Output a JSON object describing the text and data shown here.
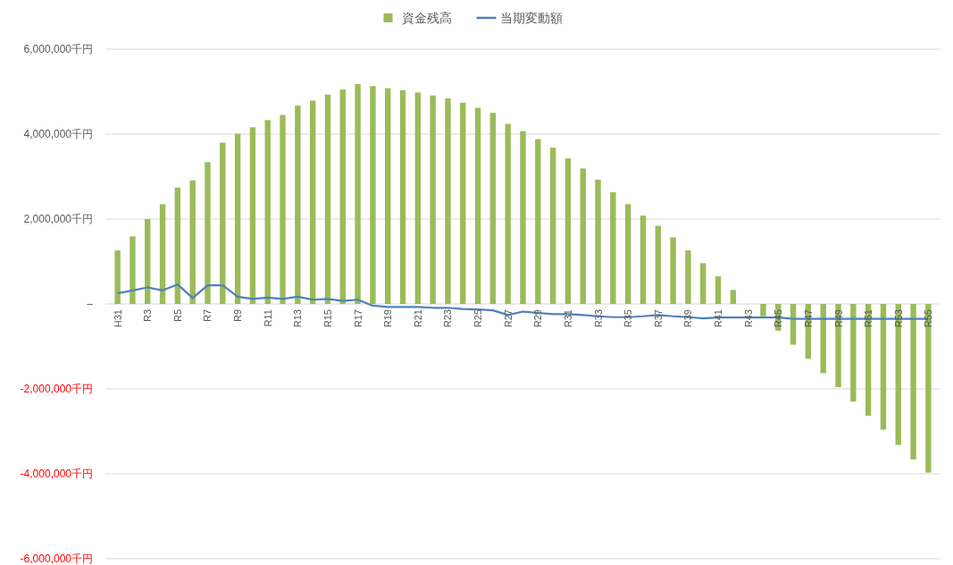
{
  "chart_data": {
    "type": "bar",
    "categories": [
      "H31",
      null,
      "R3",
      null,
      "R5",
      null,
      "R7",
      null,
      "R9",
      null,
      "R11",
      null,
      "R13",
      null,
      "R15",
      null,
      "R17",
      null,
      "R19",
      null,
      "R21",
      null,
      "R23",
      null,
      "R25",
      null,
      "R27",
      null,
      "R29",
      null,
      "R31",
      null,
      "R33",
      null,
      "R35",
      null,
      "R37",
      null,
      "R39",
      null,
      "R41",
      null,
      "R43",
      null,
      "R45",
      null,
      "R47",
      null,
      "R49",
      null,
      "R51",
      null,
      "R53",
      null,
      "R55"
    ],
    "series": [
      {
        "name": "資金残高",
        "color": "#9bbb59",
        "values": [
          1260000,
          1590000,
          2000000,
          2350000,
          2740000,
          2910000,
          3340000,
          3800000,
          4010000,
          4160000,
          4330000,
          4450000,
          4670000,
          4790000,
          4930000,
          5050000,
          5180000,
          5130000,
          5080000,
          5030000,
          4980000,
          4910000,
          4840000,
          4740000,
          4620000,
          4500000,
          4240000,
          4070000,
          3880000,
          3680000,
          3430000,
          3190000,
          2930000,
          2630000,
          2350000,
          2080000,
          1840000,
          1570000,
          1260000,
          960000,
          650000,
          330000,
          0,
          -290000,
          -630000,
          -960000,
          -1290000,
          -1630000,
          -1960000,
          -2300000,
          -2630000,
          -2960000,
          -3320000,
          -3660000,
          -3970000
        ]
      },
      {
        "name": "当期変動額",
        "type": "line",
        "color": "#4f81bd",
        "values": [
          250000,
          320000,
          390000,
          320000,
          460000,
          140000,
          440000,
          440000,
          170000,
          120000,
          150000,
          120000,
          170000,
          100000,
          120000,
          70000,
          100000,
          -40000,
          -70000,
          -70000,
          -70000,
          -90000,
          -90000,
          -120000,
          -130000,
          -150000,
          -260000,
          -180000,
          -210000,
          -240000,
          -240000,
          -260000,
          -290000,
          -310000,
          -310000,
          -290000,
          -260000,
          -290000,
          -310000,
          -340000,
          -320000,
          -320000,
          -320000,
          -320000,
          -320000,
          -350000,
          -350000,
          -350000,
          -350000,
          -350000,
          -350000,
          -350000,
          -350000,
          -350000,
          -350000
        ]
      }
    ],
    "ylim": [
      -6000000,
      6000000
    ],
    "yticks": [
      {
        "value": -6000000,
        "label": "-6,000,000千円"
      },
      {
        "value": -4000000,
        "label": "-4,000,000千円"
      },
      {
        "value": -2000000,
        "label": "-2,000,000千円"
      },
      {
        "value": 0,
        "label": "–"
      },
      {
        "value": 2000000,
        "label": "2,000,000千円"
      },
      {
        "value": 4000000,
        "label": "4,000,000千円"
      },
      {
        "value": 6000000,
        "label": "6,000,000千円"
      }
    ],
    "grid": "y",
    "legend": "top",
    "marker": "none",
    "line_style": "solid"
  }
}
